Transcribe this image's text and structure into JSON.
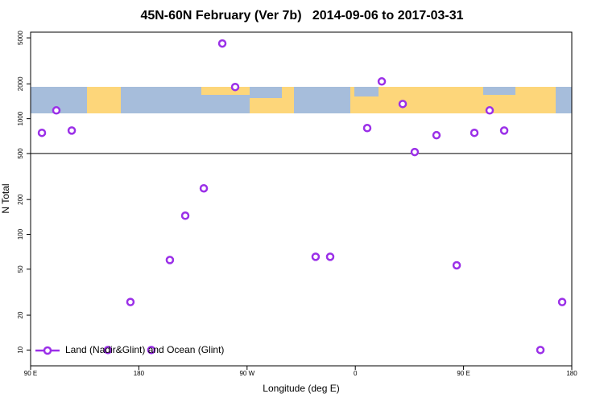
{
  "chart_data": {
    "type": "scatter",
    "title": "45N-60N February (Ver 7b)   2014-09-06 to 2017-03-31",
    "x_label": "Longitude (deg E)",
    "y_label": "N Total",
    "log_y": true,
    "legend_position": "lower left",
    "xlim": [
      90,
      540
    ],
    "ylim": [
      7.3,
      5600
    ],
    "xticks": [
      {
        "value": 90,
        "label": "90 E"
      },
      {
        "value": 180,
        "label": "180"
      },
      {
        "value": 270,
        "label": "90 W"
      },
      {
        "value": 360,
        "label": "0"
      },
      {
        "value": 450,
        "label": "90 E"
      },
      {
        "value": 540,
        "label": "180"
      }
    ],
    "yticks": [
      10,
      20,
      50,
      100,
      200,
      500,
      1000,
      2000,
      5000
    ],
    "reference_line": 500,
    "series": [
      {
        "name": "Land (Nadir&Glint) and Ocean (Glint)",
        "color": "#9b30e8",
        "x": [
          99.4,
          111.4,
          124.2,
          154.3,
          173,
          190.4,
          205.8,
          218.6,
          234,
          249.4,
          260.1,
          327,
          339.1,
          369.9,
          382,
          399.4,
          409.4,
          427.5,
          444.3,
          459,
          471.7,
          483.8,
          513.9,
          532
        ],
        "values": [
          755,
          1180,
          790,
          10,
          26,
          10,
          60,
          145,
          250,
          4470,
          1880,
          64,
          64,
          830,
          2100,
          1340,
          515,
          720,
          54,
          755,
          1180,
          790,
          10,
          26
        ]
      }
    ]
  }
}
